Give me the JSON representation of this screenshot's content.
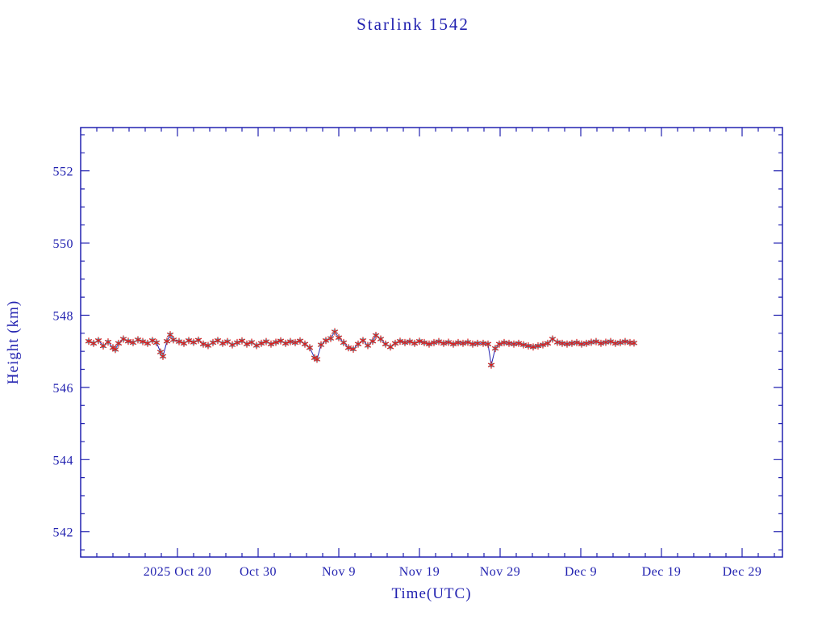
{
  "page": {
    "background": "#ffffff"
  },
  "chart_data": {
    "type": "line",
    "title": "Starlink 1542",
    "xlabel": "Time(UTC)",
    "ylabel": "Height (km)",
    "grid": false,
    "legend": "none",
    "colors": {
      "axis": "#2222b0",
      "line": "#2222b0",
      "marker_red": "#d81f1f",
      "marker_cyan": "#4ad2e6",
      "background": "#ffffff"
    },
    "x_axis": {
      "unit": "days since 2025 Oct 8 (epoch of plot left edge region)",
      "range": [
        0,
        87
      ],
      "minor_tick_interval": 2,
      "major_ticks": [
        {
          "day": 12,
          "label": "2025 Oct 20"
        },
        {
          "day": 22,
          "label": "Oct 30"
        },
        {
          "day": 32,
          "label": "Nov 9"
        },
        {
          "day": 42,
          "label": "Nov 19"
        },
        {
          "day": 52,
          "label": "Nov 29"
        },
        {
          "day": 62,
          "label": "Dec 9"
        },
        {
          "day": 72,
          "label": "Dec 19"
        },
        {
          "day": 82,
          "label": "Dec 29"
        }
      ]
    },
    "y_axis": {
      "unit": "km",
      "range": [
        541.3,
        553.2
      ],
      "minor_tick_interval": 0.5,
      "major_ticks": [
        542,
        544,
        546,
        548,
        550,
        552
      ]
    },
    "series": [
      {
        "name": "markers-cyan",
        "marker": "square",
        "color_key": "marker_cyan",
        "note": "plotted beneath red markers along same track"
      },
      {
        "name": "markers-red",
        "marker": "asterisk",
        "color_key": "marker_red",
        "note": "plotted on top, connected by thin navy line"
      }
    ],
    "points": [
      [
        1.0,
        547.28
      ],
      [
        1.6,
        547.22
      ],
      [
        2.2,
        547.3
      ],
      [
        2.8,
        547.15
      ],
      [
        3.4,
        547.26
      ],
      [
        4.0,
        547.1
      ],
      [
        4.3,
        547.05
      ],
      [
        4.7,
        547.22
      ],
      [
        5.3,
        547.34
      ],
      [
        5.9,
        547.28
      ],
      [
        6.5,
        547.24
      ],
      [
        7.1,
        547.32
      ],
      [
        7.7,
        547.27
      ],
      [
        8.3,
        547.22
      ],
      [
        8.9,
        547.3
      ],
      [
        9.4,
        547.24
      ],
      [
        9.9,
        546.98
      ],
      [
        10.2,
        546.86
      ],
      [
        10.7,
        547.28
      ],
      [
        11.1,
        547.46
      ],
      [
        11.5,
        547.32
      ],
      [
        12.2,
        547.27
      ],
      [
        12.8,
        547.22
      ],
      [
        13.4,
        547.3
      ],
      [
        14.0,
        547.25
      ],
      [
        14.6,
        547.31
      ],
      [
        15.2,
        547.2
      ],
      [
        15.8,
        547.16
      ],
      [
        16.4,
        547.24
      ],
      [
        17.0,
        547.3
      ],
      [
        17.6,
        547.22
      ],
      [
        18.2,
        547.27
      ],
      [
        18.8,
        547.18
      ],
      [
        19.4,
        547.24
      ],
      [
        20.0,
        547.29
      ],
      [
        20.6,
        547.2
      ],
      [
        21.2,
        547.25
      ],
      [
        21.8,
        547.16
      ],
      [
        22.4,
        547.22
      ],
      [
        23.0,
        547.27
      ],
      [
        23.6,
        547.2
      ],
      [
        24.2,
        547.25
      ],
      [
        24.8,
        547.29
      ],
      [
        25.4,
        547.22
      ],
      [
        26.0,
        547.27
      ],
      [
        26.6,
        547.24
      ],
      [
        27.2,
        547.29
      ],
      [
        27.8,
        547.2
      ],
      [
        28.4,
        547.1
      ],
      [
        29.0,
        546.82
      ],
      [
        29.3,
        546.78
      ],
      [
        29.8,
        547.18
      ],
      [
        30.4,
        547.3
      ],
      [
        31.0,
        547.36
      ],
      [
        31.5,
        547.54
      ],
      [
        32.0,
        547.38
      ],
      [
        32.6,
        547.24
      ],
      [
        33.2,
        547.1
      ],
      [
        33.8,
        547.06
      ],
      [
        34.4,
        547.2
      ],
      [
        35.0,
        547.3
      ],
      [
        35.6,
        547.16
      ],
      [
        36.2,
        547.28
      ],
      [
        36.6,
        547.44
      ],
      [
        37.2,
        547.34
      ],
      [
        37.8,
        547.2
      ],
      [
        38.4,
        547.12
      ],
      [
        39.0,
        547.22
      ],
      [
        39.6,
        547.28
      ],
      [
        40.2,
        547.24
      ],
      [
        40.8,
        547.27
      ],
      [
        41.4,
        547.22
      ],
      [
        42.0,
        547.28
      ],
      [
        42.6,
        547.24
      ],
      [
        43.2,
        547.2
      ],
      [
        43.8,
        547.24
      ],
      [
        44.4,
        547.27
      ],
      [
        45.0,
        547.22
      ],
      [
        45.6,
        547.25
      ],
      [
        46.2,
        547.2
      ],
      [
        46.8,
        547.24
      ],
      [
        47.4,
        547.22
      ],
      [
        48.0,
        547.25
      ],
      [
        48.6,
        547.2
      ],
      [
        49.2,
        547.22
      ],
      [
        49.9,
        547.22
      ],
      [
        50.5,
        547.2
      ],
      [
        50.9,
        546.62
      ],
      [
        51.4,
        547.08
      ],
      [
        51.9,
        547.2
      ],
      [
        52.5,
        547.24
      ],
      [
        53.1,
        547.22
      ],
      [
        53.7,
        547.2
      ],
      [
        54.3,
        547.22
      ],
      [
        54.9,
        547.18
      ],
      [
        55.5,
        547.15
      ],
      [
        56.1,
        547.12
      ],
      [
        56.7,
        547.15
      ],
      [
        57.3,
        547.18
      ],
      [
        57.9,
        547.22
      ],
      [
        58.5,
        547.34
      ],
      [
        59.1,
        547.25
      ],
      [
        59.7,
        547.22
      ],
      [
        60.3,
        547.2
      ],
      [
        60.9,
        547.22
      ],
      [
        61.5,
        547.24
      ],
      [
        62.1,
        547.2
      ],
      [
        62.7,
        547.22
      ],
      [
        63.3,
        547.25
      ],
      [
        63.9,
        547.27
      ],
      [
        64.5,
        547.22
      ],
      [
        65.1,
        547.25
      ],
      [
        65.7,
        547.27
      ],
      [
        66.3,
        547.22
      ],
      [
        66.9,
        547.24
      ],
      [
        67.5,
        547.27
      ],
      [
        68.1,
        547.24
      ],
      [
        68.6,
        547.23
      ]
    ]
  }
}
